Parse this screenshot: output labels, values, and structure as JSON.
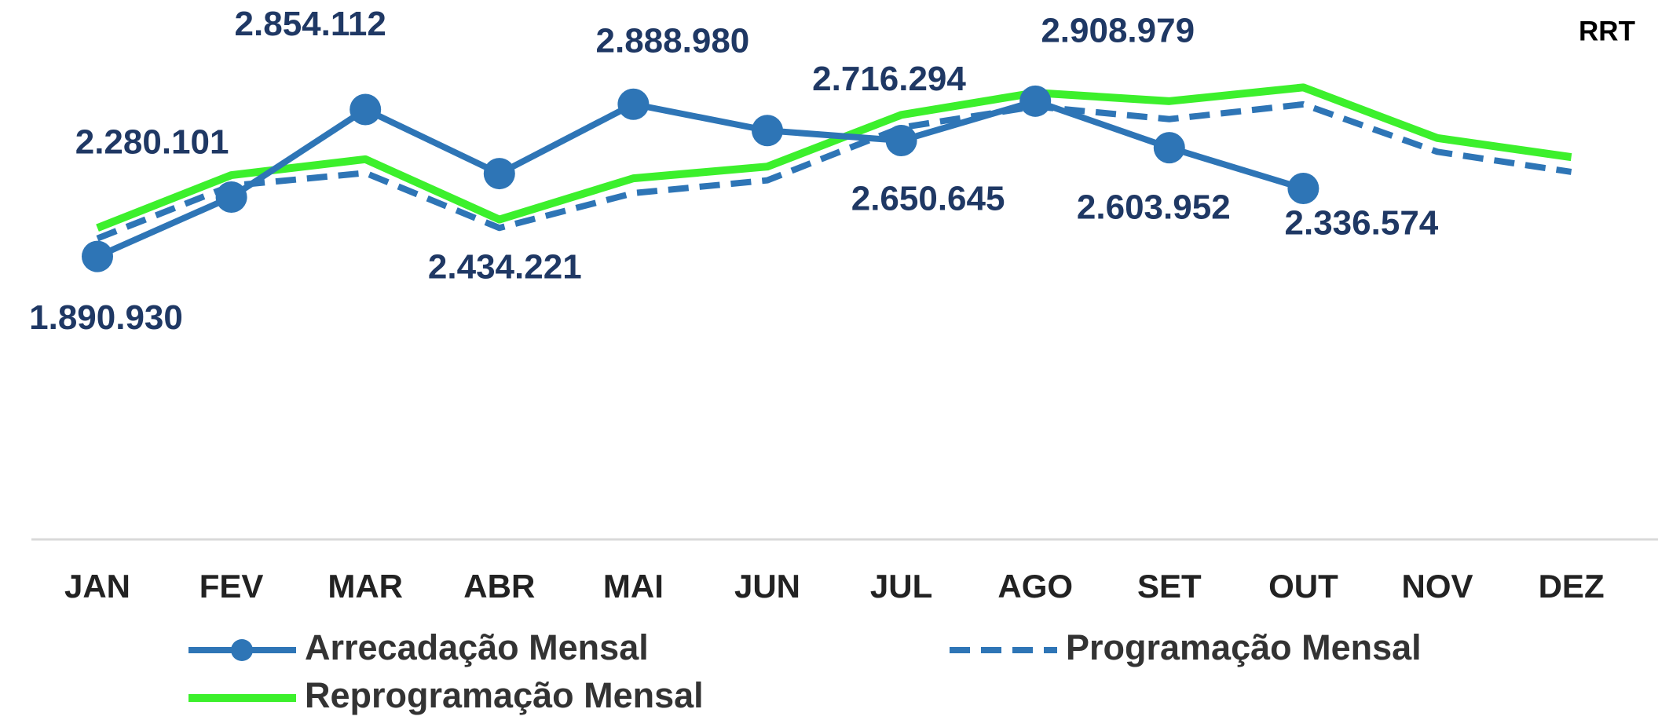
{
  "chart_data": {
    "type": "line",
    "annotation": "RRT",
    "categories": [
      "JAN",
      "FEV",
      "MAR",
      "ABR",
      "MAI",
      "JUN",
      "JUL",
      "AGO",
      "SET",
      "OUT",
      "NOV",
      "DEZ"
    ],
    "ylim": [
      0,
      3500000
    ],
    "series": [
      {
        "name": "Arrecadação Mensal",
        "color": "#2e75b6",
        "style": "solid-marker",
        "values": [
          1890930,
          2280101,
          2854112,
          2434221,
          2888980,
          2716294,
          2650645,
          2908979,
          2603952,
          2336574,
          null,
          null
        ],
        "value_labels": [
          "1.890.930",
          "2.280.101",
          "2.854.112",
          "2.434.221",
          "2.888.980",
          "2.716.294",
          "2.650.645",
          "2.908.979",
          "2.603.952",
          "2.336.574",
          null,
          null
        ]
      },
      {
        "name": "Programação Mensal",
        "color": "#2e75b6",
        "style": "dashed",
        "values": [
          2009000,
          2355000,
          2438000,
          2078000,
          2306000,
          2390000,
          2736000,
          2874000,
          2791000,
          2888000,
          2577000,
          2445000
        ]
      },
      {
        "name": "Reprogramação Mensal",
        "color": "#3cf02c",
        "style": "solid",
        "values": [
          2078000,
          2424000,
          2528000,
          2133000,
          2403000,
          2480000,
          2819000,
          2964000,
          2909000,
          2999000,
          2667000,
          2542000
        ]
      }
    ]
  }
}
